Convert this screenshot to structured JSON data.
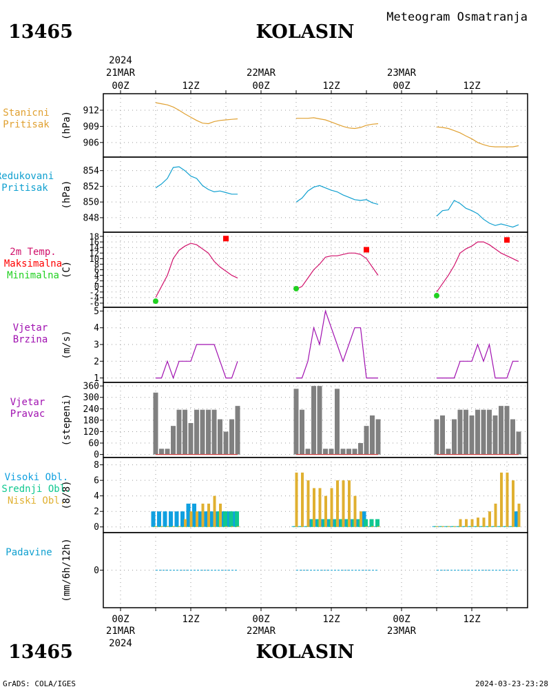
{
  "header": {
    "station_id": "13465",
    "station_name": "KOLASIN",
    "subtitle": "Meteogram Osmatranja"
  },
  "footer": {
    "station_id": "13465",
    "station_name": "KOLASIN",
    "credit": "GrADS: COLA/IGES",
    "timestamp": "2024-03-23-23:28"
  },
  "time_axis": {
    "top_year": "2024",
    "bottom_year": "2024",
    "ticks": [
      {
        "t": 0,
        "top": "21MAR",
        "label": "00Z"
      },
      {
        "t": 12,
        "label": "12Z"
      },
      {
        "t": 24,
        "top": "22MAR",
        "label": "00Z"
      },
      {
        "t": 36,
        "label": "12Z"
      },
      {
        "t": 48,
        "top": "23MAR",
        "label": "00Z"
      },
      {
        "t": 60,
        "label": "12Z"
      }
    ]
  },
  "colors": {
    "pressure": "#e0a030",
    "reduced": "#10a0d0",
    "temp": "#d0106a",
    "tmax": "#ff0000",
    "tmin": "#20d020",
    "wind": "#a010b0",
    "dir_bar": "#808080",
    "high_cloud": "#10a0e0",
    "mid_cloud": "#10c890",
    "low_cloud": "#e0b030",
    "precip": "#10a0d0"
  },
  "chart_data": [
    {
      "type": "line",
      "label_lines": [
        "Stanicni",
        "Pritisak"
      ],
      "ylabel": "(hPa)",
      "ylim": [
        903.8,
        914.3
      ],
      "yticks": [
        "906",
        "909",
        "912"
      ],
      "segments": [
        {
          "t": [
            6,
            7,
            8,
            9,
            10,
            11,
            12,
            13,
            14,
            15,
            16,
            17,
            18,
            19,
            20
          ],
          "v": [
            913.4,
            913.2,
            913.0,
            912.6,
            912.0,
            911.3,
            910.7,
            910.1,
            909.6,
            909.5,
            909.9,
            910.1,
            910.2,
            910.3,
            910.4
          ]
        },
        {
          "t": [
            30,
            31,
            32,
            33,
            34,
            35,
            36,
            37,
            38,
            39,
            40,
            41,
            42,
            43,
            44
          ],
          "v": [
            910.5,
            910.5,
            910.5,
            910.6,
            910.4,
            910.2,
            909.8,
            909.4,
            909.0,
            908.7,
            908.6,
            908.8,
            909.2,
            909.4,
            909.5
          ]
        },
        {
          "t": [
            54,
            55,
            56,
            57,
            58,
            59,
            60,
            61,
            62,
            63,
            64,
            65,
            66,
            67,
            68
          ],
          "v": [
            908.9,
            908.8,
            908.6,
            908.2,
            907.8,
            907.2,
            906.7,
            906.0,
            905.6,
            905.3,
            905.2,
            905.2,
            905.2,
            905.2,
            905.4
          ]
        }
      ]
    },
    {
      "type": "line",
      "label_lines": [
        "Redukovani",
        "Pritisak"
      ],
      "ylabel": "(hPa)",
      "ylim": [
        846.5,
        855.2
      ],
      "yticks": [
        "848",
        "850",
        "852",
        "854"
      ],
      "segments": [
        {
          "t": [
            6,
            7,
            8,
            9,
            10,
            11,
            12,
            13,
            14,
            15,
            16,
            17,
            18,
            19,
            20
          ],
          "v": [
            851.8,
            852.3,
            853.0,
            854.4,
            854.5,
            854.0,
            853.3,
            853.0,
            852.1,
            851.6,
            851.3,
            851.4,
            851.2,
            851.0,
            851.0
          ]
        },
        {
          "t": [
            30,
            31,
            32,
            33,
            34,
            35,
            36,
            37,
            38,
            39,
            40,
            41,
            42,
            43,
            44
          ],
          "v": [
            850.0,
            850.5,
            851.4,
            851.9,
            852.1,
            851.8,
            851.5,
            851.3,
            850.9,
            850.6,
            850.3,
            850.2,
            850.3,
            849.9,
            849.7
          ]
        },
        {
          "t": [
            54,
            55,
            56,
            57,
            58,
            59,
            60,
            61,
            62,
            63,
            64,
            65,
            66,
            67,
            68
          ],
          "v": [
            848.2,
            848.9,
            849.0,
            850.2,
            849.8,
            849.2,
            848.9,
            848.5,
            847.8,
            847.3,
            847.0,
            847.2,
            847.0,
            846.8,
            847.1
          ]
        }
      ]
    },
    {
      "type": "line",
      "label_lines": [
        "2m Temp.",
        "Maksimalna",
        "Minimalna"
      ],
      "label_color_keys": [
        "temp",
        "tmax",
        "tmin"
      ],
      "ylabel": "(C)",
      "ylim": [
        -7,
        19
      ],
      "yticks": [
        "-6",
        "-4",
        "-2",
        "0",
        "2",
        "4",
        "6",
        "8",
        "10",
        "12",
        "14",
        "16",
        "18"
      ],
      "segments": [
        {
          "t": [
            6,
            7,
            8,
            9,
            10,
            11,
            12,
            13,
            14,
            15,
            16,
            17,
            18,
            19,
            20
          ],
          "v": [
            -4,
            0,
            4,
            10,
            13,
            14.5,
            15.5,
            15,
            13.5,
            12,
            9,
            7,
            5.5,
            4,
            3
          ]
        },
        {
          "t": [
            30,
            31,
            32,
            33,
            34,
            35,
            36,
            37,
            38,
            39,
            40,
            41,
            42,
            43,
            44
          ],
          "v": [
            -1,
            0,
            3,
            6,
            8,
            10.5,
            11,
            11,
            11.5,
            12,
            12,
            11.5,
            10,
            7,
            4
          ]
        },
        {
          "t": [
            54,
            55,
            56,
            57,
            58,
            59,
            60,
            61,
            62,
            63,
            64,
            65,
            66,
            67,
            68
          ],
          "v": [
            -2,
            1,
            4,
            7.5,
            12,
            13.5,
            14.5,
            16,
            16,
            15,
            13.5,
            12,
            11,
            10,
            9
          ]
        }
      ],
      "max_points": [
        {
          "t": 18,
          "v": 17.2
        },
        {
          "t": 42,
          "v": 13.2
        },
        {
          "t": 66,
          "v": 16.7
        }
      ],
      "min_points": [
        {
          "t": 6,
          "v": -5.3
        },
        {
          "t": 30,
          "v": -0.8
        },
        {
          "t": 54,
          "v": -3.3
        }
      ]
    },
    {
      "type": "line",
      "label_lines": [
        "Vjetar",
        "Brzina"
      ],
      "ylabel": "(m/s)",
      "ylim": [
        0.9,
        5.1
      ],
      "yticks": [
        "1",
        "2",
        "3",
        "4",
        "5"
      ],
      "segments": [
        {
          "t": [
            6,
            7,
            8,
            9,
            10,
            11,
            12,
            13,
            14,
            15,
            16,
            17,
            18,
            19,
            20
          ],
          "v": [
            1,
            1,
            2,
            1,
            2,
            2,
            2,
            3,
            3,
            3,
            3,
            2,
            1,
            1,
            2
          ]
        },
        {
          "t": [
            30,
            31,
            32,
            33,
            34,
            35,
            36,
            37,
            38,
            39,
            40,
            41,
            42,
            43,
            44
          ],
          "v": [
            1,
            1,
            2,
            4,
            3,
            5,
            4,
            3,
            2,
            3,
            4,
            4,
            1,
            1,
            1
          ]
        },
        {
          "t": [
            54,
            55,
            56,
            57,
            58,
            59,
            60,
            61,
            62,
            63,
            64,
            65,
            66,
            67,
            68
          ],
          "v": [
            1,
            1,
            1,
            1,
            2,
            2,
            2,
            3,
            2,
            3,
            1,
            1,
            1,
            2,
            2
          ]
        }
      ]
    },
    {
      "type": "bar",
      "label_lines": [
        "Vjetar",
        "Pravac"
      ],
      "ylabel": "(stepeni)",
      "ylim": [
        -5,
        375
      ],
      "yticks": [
        "0",
        "60",
        "120",
        "180",
        "240",
        "300",
        "360"
      ],
      "segments": [
        {
          "t": [
            6,
            7,
            8,
            9,
            10,
            11,
            12,
            13,
            14,
            15,
            16,
            17,
            18,
            19,
            20
          ],
          "v": [
            325,
            30,
            30,
            150,
            235,
            235,
            165,
            235,
            235,
            235,
            235,
            185,
            120,
            185,
            255
          ]
        },
        {
          "t": [
            30,
            31,
            32,
            33,
            34,
            35,
            36,
            37,
            38,
            39,
            40,
            41,
            42,
            43,
            44
          ],
          "v": [
            345,
            235,
            30,
            360,
            360,
            30,
            30,
            345,
            30,
            30,
            30,
            60,
            150,
            205,
            185
          ]
        },
        {
          "t": [
            54,
            55,
            56,
            57,
            58,
            59,
            60,
            61,
            62,
            63,
            64,
            65,
            66,
            67,
            68
          ],
          "v": [
            185,
            205,
            30,
            185,
            235,
            235,
            205,
            235,
            235,
            235,
            205,
            255,
            255,
            185,
            120
          ]
        }
      ]
    },
    {
      "type": "bar",
      "label_lines": [
        "Visoki Obl.",
        "Srednji Obl.",
        "Niski Obl."
      ],
      "label_color_keys": [
        "high_cloud",
        "mid_cloud",
        "low_cloud"
      ],
      "ylabel": "(8/8)",
      "ylim": [
        -0.2,
        8.5
      ],
      "yticks": [
        "0",
        "2",
        "4",
        "6",
        "8"
      ],
      "high": [
        {
          "t": [
            6,
            7,
            8,
            9,
            10,
            11,
            12,
            13,
            14,
            15,
            16,
            17,
            18,
            19,
            20
          ],
          "v": [
            2,
            2,
            2,
            2,
            2,
            2,
            3,
            3,
            2,
            2,
            2,
            2,
            2,
            2,
            2
          ]
        },
        {
          "t": [
            30,
            31,
            32,
            33,
            34,
            35,
            36,
            37,
            38,
            39,
            40,
            41,
            42,
            43,
            44
          ],
          "v": [
            0,
            0,
            0,
            1,
            1,
            1,
            1,
            1,
            1,
            1,
            1,
            1,
            2,
            0,
            0
          ]
        },
        {
          "t": [
            54,
            55,
            56,
            57,
            58,
            59,
            60,
            61,
            62,
            63,
            64,
            65,
            66,
            67,
            68
          ],
          "v": [
            0,
            0,
            0,
            0,
            0,
            0,
            0,
            0,
            0,
            0,
            0,
            0,
            0,
            0,
            2
          ]
        }
      ],
      "mid": [
        {
          "t": [
            6,
            7,
            8,
            9,
            10,
            11,
            12,
            13,
            14,
            15,
            16,
            17,
            18,
            19,
            20
          ],
          "v": [
            0,
            0,
            0,
            0,
            0,
            0,
            0,
            0,
            0,
            0,
            0,
            2,
            2,
            2,
            2
          ]
        },
        {
          "t": [
            30,
            31,
            32,
            33,
            34,
            35,
            36,
            37,
            38,
            39,
            40,
            41,
            42,
            43,
            44
          ],
          "v": [
            0,
            0,
            0,
            1,
            1,
            1,
            1,
            1,
            1,
            1,
            1,
            1,
            1,
            1,
            1
          ]
        },
        {
          "t": [
            54,
            55,
            56,
            57,
            58,
            59,
            60,
            61,
            62,
            63,
            64,
            65,
            66,
            67,
            68
          ],
          "v": [
            0,
            0,
            0,
            0,
            0,
            0,
            0,
            0,
            0,
            0,
            0,
            0,
            0,
            0,
            0
          ]
        }
      ],
      "low": [
        {
          "t": [
            6,
            7,
            8,
            9,
            10,
            11,
            12,
            13,
            14,
            15,
            16,
            17,
            18,
            19,
            20
          ],
          "v": [
            0,
            0,
            0,
            0,
            0,
            1,
            2,
            2,
            3,
            3,
            4,
            3,
            0,
            0,
            0
          ]
        },
        {
          "t": [
            30,
            31,
            32,
            33,
            34,
            35,
            36,
            37,
            38,
            39,
            40,
            41,
            42,
            43,
            44
          ],
          "v": [
            7,
            7,
            6,
            5,
            5,
            4,
            5,
            6,
            6,
            6,
            4,
            2,
            0,
            0,
            0
          ]
        },
        {
          "t": [
            54,
            55,
            56,
            57,
            58,
            59,
            60,
            61,
            62,
            63,
            64,
            65,
            66,
            67,
            68
          ],
          "v": [
            0,
            0,
            0,
            0,
            1,
            1,
            1,
            1.2,
            1.2,
            2,
            3,
            7,
            7,
            6,
            3
          ]
        }
      ]
    },
    {
      "type": "line",
      "label_lines": [
        "Padavine"
      ],
      "ylabel": "(mm/6h/12h)",
      "ylim": [
        -1,
        1
      ],
      "yticks": [
        "0"
      ],
      "segments": [
        {
          "t": [
            6,
            20
          ],
          "v": [
            0,
            0
          ]
        },
        {
          "t": [
            30,
            44
          ],
          "v": [
            0,
            0
          ]
        },
        {
          "t": [
            54,
            68
          ],
          "v": [
            0,
            0
          ]
        }
      ]
    }
  ]
}
